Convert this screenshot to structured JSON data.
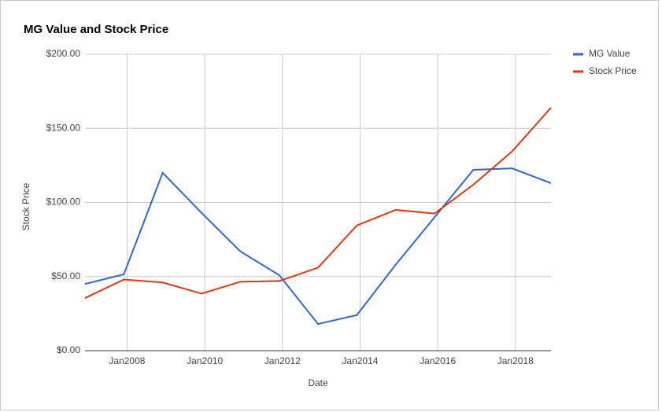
{
  "chart_data": {
    "type": "line",
    "title": "MG Value and Stock Price",
    "x_label": "Date",
    "y_label": "Stock Price",
    "x": [
      "2006-12",
      "2007-12",
      "2008-12",
      "2009-12",
      "2010-12",
      "2011-12",
      "2012-12",
      "2013-12",
      "2014-12",
      "2015-12",
      "2016-12",
      "2017-12",
      "2018-12"
    ],
    "series": [
      {
        "name": "MG Value",
        "color": "#3366cc",
        "values": [
          45,
          51.5,
          120,
          93,
          67,
          51,
          18,
          24,
          58,
          90,
          122,
          123,
          113
        ]
      },
      {
        "name": "Stock Price",
        "color": "#dc3912",
        "values": [
          35.5,
          48,
          46,
          38.5,
          46.5,
          47,
          56,
          84.5,
          95,
          92.5,
          112,
          134.5,
          164
        ]
      }
    ],
    "xlim": [
      "2006-12",
      "2018-12"
    ],
    "xticks": [
      {
        "value": "2008-01",
        "label": "Jan2008"
      },
      {
        "value": "2010-01",
        "label": "Jan2010"
      },
      {
        "value": "2012-01",
        "label": "Jan2012"
      },
      {
        "value": "2014-01",
        "label": "Jan2014"
      },
      {
        "value": "2016-01",
        "label": "Jan2016"
      },
      {
        "value": "2018-01",
        "label": "Jan2018"
      }
    ],
    "ylim": [
      0,
      200
    ],
    "yticks": [
      {
        "value": 0,
        "label": "$0.00"
      },
      {
        "value": 50,
        "label": "$50.00"
      },
      {
        "value": 100,
        "label": "$100.00"
      },
      {
        "value": 150,
        "label": "$150.00"
      },
      {
        "value": 200,
        "label": "$200.00"
      }
    ],
    "grid": true,
    "legend": "right"
  }
}
